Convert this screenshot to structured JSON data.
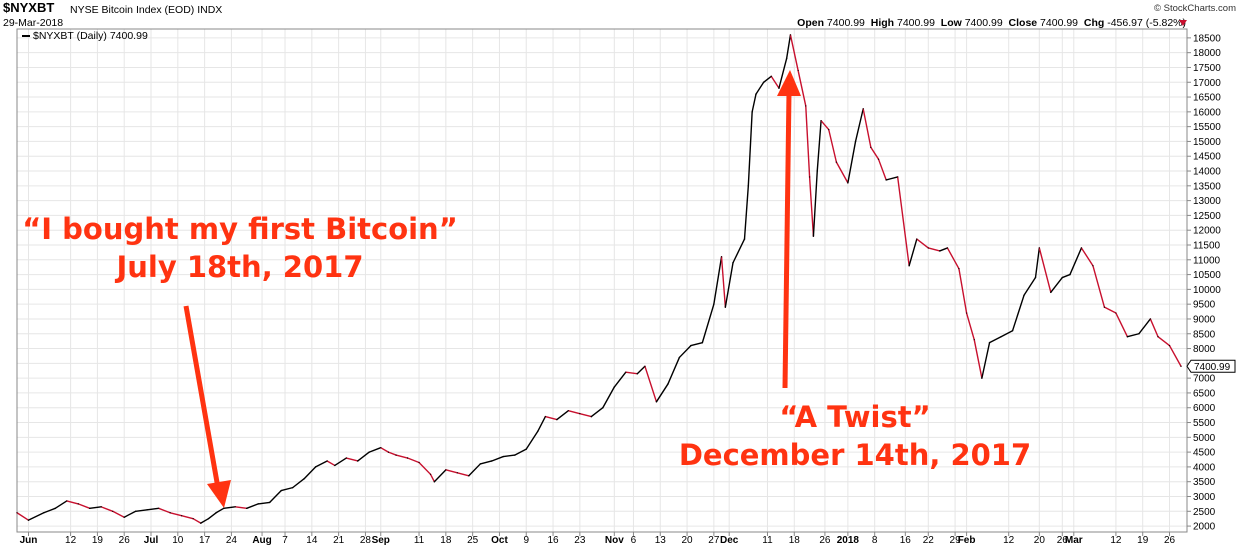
{
  "header": {
    "symbol": "$NYXBT",
    "name": "NYSE Bitcoin Index (EOD)",
    "exchange": "INDX",
    "date": "29-Mar-2018",
    "open_label": "Open",
    "open": "7400.99",
    "high_label": "High",
    "high": "7400.99",
    "low_label": "Low",
    "low": "7400.99",
    "close_label": "Close",
    "close": "7400.99",
    "chg_label": "Chg",
    "chg": "-456.97 (-5.82%)",
    "credit": "© StockCharts.com"
  },
  "legend": {
    "label": "$NYXBT (Daily) 7400.99"
  },
  "annotations": {
    "first_line1": "“I bought my first Bitcoin”",
    "first_line2": "July 18th, 2017",
    "twist_line1": "“A Twist”",
    "twist_line2": "December 14th, 2017"
  },
  "colors": {
    "up": "#000000",
    "down": "#c8102e",
    "annotation": "#ff3311",
    "grid": "#e6e6e6"
  },
  "chart_data": {
    "type": "line",
    "title": "$NYXBT (Daily) 7400.99",
    "last_value_label": "7400.99",
    "grid": true,
    "ylim": [
      1800,
      18800
    ],
    "yticks": [
      2000,
      2500,
      3000,
      3500,
      4000,
      4500,
      5000,
      5500,
      6000,
      6500,
      7000,
      7500,
      8000,
      8500,
      9000,
      9500,
      10000,
      10500,
      11000,
      11500,
      12000,
      12500,
      13000,
      13500,
      14000,
      14500,
      15000,
      15500,
      16000,
      16500,
      17000,
      17500,
      18000,
      18500
    ],
    "xlim": [
      "2017-05-29",
      "2018-03-29"
    ],
    "xticks": [
      {
        "date": "2017-06-01",
        "label": "Jun",
        "bold": true
      },
      {
        "date": "2017-06-12",
        "label": "12"
      },
      {
        "date": "2017-06-19",
        "label": "19"
      },
      {
        "date": "2017-06-26",
        "label": "26"
      },
      {
        "date": "2017-07-03",
        "label": "Jul",
        "bold": true
      },
      {
        "date": "2017-07-10",
        "label": "10"
      },
      {
        "date": "2017-07-17",
        "label": "17"
      },
      {
        "date": "2017-07-24",
        "label": "24"
      },
      {
        "date": "2017-08-01",
        "label": "Aug",
        "bold": true
      },
      {
        "date": "2017-08-07",
        "label": "7"
      },
      {
        "date": "2017-08-14",
        "label": "14"
      },
      {
        "date": "2017-08-21",
        "label": "21"
      },
      {
        "date": "2017-08-28",
        "label": "28"
      },
      {
        "date": "2017-09-01",
        "label": "Sep",
        "bold": true
      },
      {
        "date": "2017-09-11",
        "label": "11"
      },
      {
        "date": "2017-09-18",
        "label": "18"
      },
      {
        "date": "2017-09-25",
        "label": "25"
      },
      {
        "date": "2017-10-02",
        "label": "Oct",
        "bold": true
      },
      {
        "date": "2017-10-09",
        "label": "9"
      },
      {
        "date": "2017-10-16",
        "label": "16"
      },
      {
        "date": "2017-10-23",
        "label": "23"
      },
      {
        "date": "2017-11-01",
        "label": "Nov",
        "bold": true
      },
      {
        "date": "2017-11-06",
        "label": "6"
      },
      {
        "date": "2017-11-13",
        "label": "13"
      },
      {
        "date": "2017-11-20",
        "label": "20"
      },
      {
        "date": "2017-11-27",
        "label": "27"
      },
      {
        "date": "2017-12-01",
        "label": "Dec",
        "bold": true
      },
      {
        "date": "2017-12-11",
        "label": "11"
      },
      {
        "date": "2017-12-18",
        "label": "18"
      },
      {
        "date": "2017-12-26",
        "label": "26"
      },
      {
        "date": "2018-01-01",
        "label": "2018",
        "bold": true
      },
      {
        "date": "2018-01-08",
        "label": "8"
      },
      {
        "date": "2018-01-16",
        "label": "16"
      },
      {
        "date": "2018-01-22",
        "label": "22"
      },
      {
        "date": "2018-01-29",
        "label": "29"
      },
      {
        "date": "2018-02-01",
        "label": "Feb",
        "bold": true
      },
      {
        "date": "2018-02-12",
        "label": "12"
      },
      {
        "date": "2018-02-20",
        "label": "20"
      },
      {
        "date": "2018-02-26",
        "label": "26"
      },
      {
        "date": "2018-03-01",
        "label": "Mar",
        "bold": true
      },
      {
        "date": "2018-03-12",
        "label": "12"
      },
      {
        "date": "2018-03-19",
        "label": "19"
      },
      {
        "date": "2018-03-26",
        "label": "26"
      }
    ],
    "series": [
      {
        "values": [
          [
            "2017-05-29",
            2450
          ],
          [
            "2017-06-01",
            2200
          ],
          [
            "2017-06-05",
            2450
          ],
          [
            "2017-06-08",
            2600
          ],
          [
            "2017-06-11",
            2850
          ],
          [
            "2017-06-14",
            2750
          ],
          [
            "2017-06-17",
            2600
          ],
          [
            "2017-06-20",
            2650
          ],
          [
            "2017-06-23",
            2500
          ],
          [
            "2017-06-26",
            2300
          ],
          [
            "2017-06-29",
            2500
          ],
          [
            "2017-07-02",
            2550
          ],
          [
            "2017-07-05",
            2600
          ],
          [
            "2017-07-08",
            2450
          ],
          [
            "2017-07-11",
            2350
          ],
          [
            "2017-07-14",
            2250
          ],
          [
            "2017-07-16",
            2100
          ],
          [
            "2017-07-18",
            2250
          ],
          [
            "2017-07-20",
            2450
          ],
          [
            "2017-07-22",
            2600
          ],
          [
            "2017-07-25",
            2650
          ],
          [
            "2017-07-28",
            2600
          ],
          [
            "2017-07-31",
            2750
          ],
          [
            "2017-08-03",
            2800
          ],
          [
            "2017-08-06",
            3200
          ],
          [
            "2017-08-09",
            3300
          ],
          [
            "2017-08-12",
            3600
          ],
          [
            "2017-08-15",
            4000
          ],
          [
            "2017-08-18",
            4200
          ],
          [
            "2017-08-20",
            4050
          ],
          [
            "2017-08-23",
            4300
          ],
          [
            "2017-08-26",
            4200
          ],
          [
            "2017-08-29",
            4500
          ],
          [
            "2017-09-01",
            4650
          ],
          [
            "2017-09-03",
            4500
          ],
          [
            "2017-09-05",
            4400
          ],
          [
            "2017-09-08",
            4300
          ],
          [
            "2017-09-11",
            4150
          ],
          [
            "2017-09-14",
            3750
          ],
          [
            "2017-09-15",
            3500
          ],
          [
            "2017-09-18",
            3900
          ],
          [
            "2017-09-21",
            3800
          ],
          [
            "2017-09-24",
            3700
          ],
          [
            "2017-09-27",
            4100
          ],
          [
            "2017-09-30",
            4200
          ],
          [
            "2017-10-03",
            4350
          ],
          [
            "2017-10-06",
            4400
          ],
          [
            "2017-10-09",
            4600
          ],
          [
            "2017-10-12",
            5200
          ],
          [
            "2017-10-14",
            5700
          ],
          [
            "2017-10-17",
            5600
          ],
          [
            "2017-10-20",
            5900
          ],
          [
            "2017-10-23",
            5800
          ],
          [
            "2017-10-26",
            5700
          ],
          [
            "2017-10-29",
            6000
          ],
          [
            "2017-11-01",
            6700
          ],
          [
            "2017-11-04",
            7200
          ],
          [
            "2017-11-07",
            7150
          ],
          [
            "2017-11-09",
            7400
          ],
          [
            "2017-11-12",
            6200
          ],
          [
            "2017-11-15",
            6800
          ],
          [
            "2017-11-18",
            7700
          ],
          [
            "2017-11-21",
            8100
          ],
          [
            "2017-11-24",
            8200
          ],
          [
            "2017-11-27",
            9500
          ],
          [
            "2017-11-29",
            11100
          ],
          [
            "2017-11-30",
            9400
          ],
          [
            "2017-12-02",
            10900
          ],
          [
            "2017-12-05",
            11700
          ],
          [
            "2017-12-06",
            13500
          ],
          [
            "2017-12-07",
            16000
          ],
          [
            "2017-12-08",
            16600
          ],
          [
            "2017-12-10",
            17000
          ],
          [
            "2017-12-12",
            17200
          ],
          [
            "2017-12-14",
            16800
          ],
          [
            "2017-12-16",
            17800
          ],
          [
            "2017-12-17",
            18600
          ],
          [
            "2017-12-19",
            17400
          ],
          [
            "2017-12-21",
            16200
          ],
          [
            "2017-12-22",
            13800
          ],
          [
            "2017-12-23",
            11800
          ],
          [
            "2017-12-24",
            14000
          ],
          [
            "2017-12-25",
            15700
          ],
          [
            "2017-12-27",
            15400
          ],
          [
            "2017-12-29",
            14300
          ],
          [
            "2018-01-01",
            13600
          ],
          [
            "2018-01-03",
            15000
          ],
          [
            "2018-01-05",
            16100
          ],
          [
            "2018-01-07",
            14800
          ],
          [
            "2018-01-09",
            14400
          ],
          [
            "2018-01-11",
            13700
          ],
          [
            "2018-01-14",
            13800
          ],
          [
            "2018-01-17",
            10800
          ],
          [
            "2018-01-19",
            11700
          ],
          [
            "2018-01-22",
            11400
          ],
          [
            "2018-01-25",
            11300
          ],
          [
            "2018-01-27",
            11400
          ],
          [
            "2018-01-30",
            10700
          ],
          [
            "2018-02-01",
            9200
          ],
          [
            "2018-02-03",
            8300
          ],
          [
            "2018-02-05",
            7000
          ],
          [
            "2018-02-07",
            8200
          ],
          [
            "2018-02-10",
            8400
          ],
          [
            "2018-02-13",
            8600
          ],
          [
            "2018-02-16",
            9800
          ],
          [
            "2018-02-19",
            10400
          ],
          [
            "2018-02-20",
            11400
          ],
          [
            "2018-02-23",
            9900
          ],
          [
            "2018-02-26",
            10400
          ],
          [
            "2018-02-28",
            10500
          ],
          [
            "2018-03-03",
            11400
          ],
          [
            "2018-03-06",
            10800
          ],
          [
            "2018-03-09",
            9400
          ],
          [
            "2018-03-12",
            9200
          ],
          [
            "2018-03-15",
            8400
          ],
          [
            "2018-03-18",
            8500
          ],
          [
            "2018-03-21",
            9000
          ],
          [
            "2018-03-23",
            8400
          ],
          [
            "2018-03-26",
            8100
          ],
          [
            "2018-03-29",
            7401
          ]
        ]
      }
    ]
  }
}
